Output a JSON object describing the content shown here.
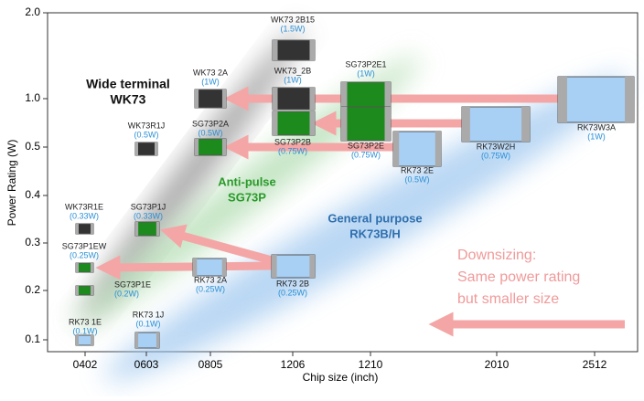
{
  "axes": {
    "y_label": "Power Rating (W)",
    "x_label": "Chip size (inch)",
    "yticks": [
      "2.0",
      "1.0",
      "0.5",
      "0.4",
      "0.3",
      "0.2",
      "0.1"
    ],
    "xticks": [
      "0402",
      "0603",
      "0805",
      "1206",
      "1210",
      "2010",
      "2512"
    ]
  },
  "annotations": {
    "wk73": [
      "Wide terminal",
      "WK73"
    ],
    "sg73p": [
      "Anti-pulse",
      "SG73P"
    ],
    "rk73": [
      "General purpose",
      "RK73B/H"
    ],
    "downsizing": [
      "Downsizing:",
      "Same power rating",
      "but smaller size"
    ]
  },
  "components": [
    {
      "name": "WK73 2B15",
      "rating": "(1.5W)"
    },
    {
      "name": "WK73 2A",
      "rating": "(1W)"
    },
    {
      "name": "WK73_2B",
      "rating": "(1W)"
    },
    {
      "name": "SG73P2E1",
      "rating": "(1W)"
    },
    {
      "name": "WK73R1J",
      "rating": "(0.5W)"
    },
    {
      "name": "SG73P2A",
      "rating": "(0.5W)"
    },
    {
      "name": "SG73P2B",
      "rating": "(0.75W)"
    },
    {
      "name": "SG73P2E",
      "rating": "(0.75W)"
    },
    {
      "name": "RK73 2E",
      "rating": "(0.5W)"
    },
    {
      "name": "RK73W2H",
      "rating": "(0.75W)"
    },
    {
      "name": "RK73W3A",
      "rating": "(1W)"
    },
    {
      "name": "WK73R1E",
      "rating": "(0.33W)"
    },
    {
      "name": "SG73P1J",
      "rating": "(0.33W)"
    },
    {
      "name": "SG73P1EW",
      "rating": "(0.25W)"
    },
    {
      "name": "SG73P1E",
      "rating": "(0.2W)"
    },
    {
      "name": "RK73 2A",
      "rating": "(0.25W)"
    },
    {
      "name": "RK73 2B",
      "rating": "(0.25W)"
    },
    {
      "name": "RK73 1E",
      "rating": "(0.1W)"
    },
    {
      "name": "RK73 1J",
      "rating": "(0.1W)"
    }
  ]
}
